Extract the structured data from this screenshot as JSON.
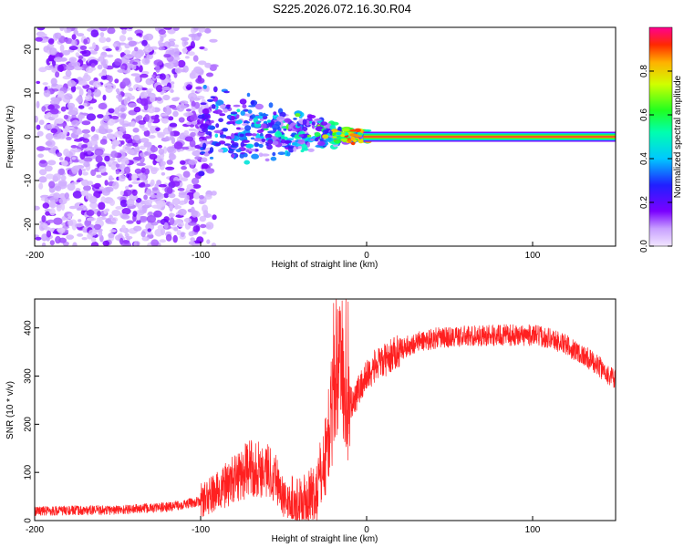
{
  "page_title": "S225.2026.072.16.30.R04",
  "chart_data": [
    {
      "type": "heatmap",
      "title": "S225.2026.072.16.30.R04",
      "xlabel": "Height of straight line (km)",
      "ylabel": "Frequency (Hz)",
      "xlim": [
        -200,
        150
      ],
      "ylim": [
        -25,
        25
      ],
      "x_ticks": [
        -200,
        -100,
        0,
        100
      ],
      "x_tick_labels": [
        "-200",
        "-100",
        "0",
        "100"
      ],
      "y_ticks": [
        -20,
        -10,
        0,
        10,
        20
      ],
      "y_tick_labels": [
        "-20",
        "-10",
        "0",
        "10",
        "20"
      ],
      "colorbar": {
        "label": "Normalized spectral amplitude",
        "range": [
          0,
          1
        ],
        "ticks": [
          0.0,
          0.2,
          0.4,
          0.6,
          0.8
        ],
        "tick_labels": [
          "0.0",
          "0.2",
          "0.4",
          "0.6",
          "0.8"
        ],
        "colormap": "rainbow"
      },
      "features": {
        "carrier_line": {
          "frequency": 0,
          "x_start": 0,
          "x_end": 150,
          "amplitude": 1.0
        },
        "noise_region": {
          "x_start": -200,
          "x_end": -100,
          "freq_spread": 25,
          "amplitude": 0.15
        },
        "transition_region": {
          "x_start": -100,
          "x_end": 0,
          "freq_spread_start": 12,
          "freq_spread_end": 1,
          "amplitude": 0.4
        }
      }
    },
    {
      "type": "line",
      "xlabel": "Height of straight line (km)",
      "ylabel": "SNR (10 * v/v)",
      "xlim": [
        -200,
        150
      ],
      "ylim": [
        0,
        460
      ],
      "x_ticks": [
        -200,
        -100,
        0,
        100
      ],
      "x_tick_labels": [
        "-200",
        "-100",
        "0",
        "100"
      ],
      "y_ticks": [
        0,
        100,
        200,
        300,
        400
      ],
      "y_tick_labels": [
        "0",
        "100",
        "200",
        "300",
        "400"
      ],
      "series": [
        {
          "name": "SNR",
          "color": "#ff2020",
          "envelope": {
            "x": [
              -200,
              -150,
              -120,
              -100,
              -90,
              -80,
              -70,
              -60,
              -55,
              -50,
              -45,
              -40,
              -35,
              -30,
              -25,
              -20,
              -18,
              -15,
              -12,
              -10,
              -5,
              0,
              5,
              10,
              20,
              30,
              40,
              60,
              80,
              100,
              110,
              120,
              130,
              140,
              150
            ],
            "y": [
              20,
              22,
              28,
              40,
              60,
              85,
              110,
              105,
              95,
              45,
              35,
              30,
              40,
              60,
              130,
              250,
              300,
              330,
              210,
              240,
              270,
              300,
              320,
              330,
              355,
              370,
              378,
              383,
              385,
              385,
              380,
              365,
              345,
              320,
              290
            ]
          }
        }
      ]
    }
  ]
}
